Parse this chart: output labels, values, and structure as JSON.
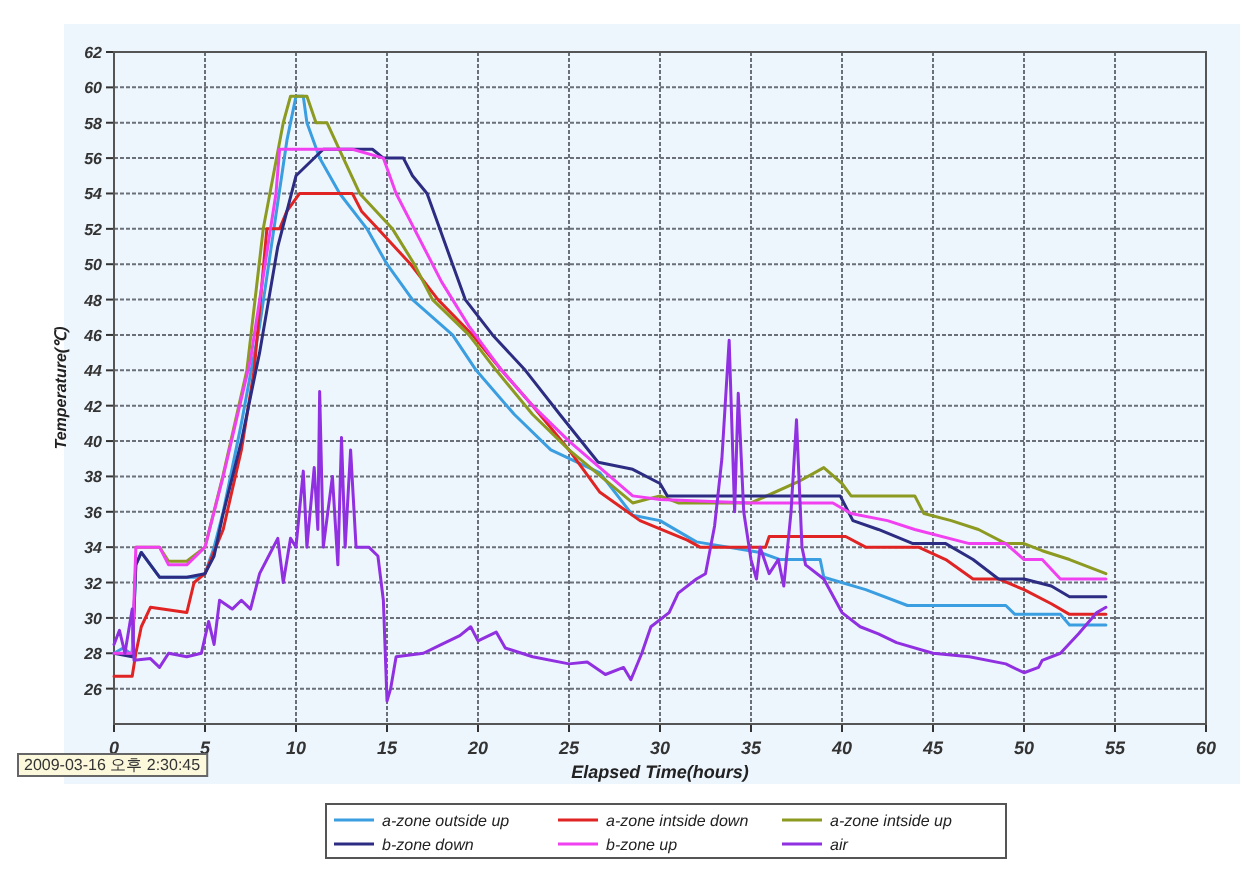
{
  "chart_data": {
    "type": "line",
    "xlabel": "Elapsed Time(hours)",
    "ylabel": "Temperature(℃)",
    "xlim": [
      0,
      60
    ],
    "ylim": [
      24,
      62
    ],
    "xticks": [
      0,
      5,
      10,
      15,
      20,
      25,
      30,
      35,
      40,
      45,
      50,
      55,
      60
    ],
    "yticks": [
      26,
      28,
      30,
      32,
      34,
      36,
      38,
      40,
      42,
      44,
      46,
      48,
      50,
      52,
      54,
      56,
      58,
      60,
      62
    ],
    "grid": true,
    "legend": "bottom",
    "marker": "none",
    "line_style": "solid",
    "annotations": [
      "2009-03-16 오후 2:30:45"
    ],
    "series": [
      {
        "name": "a-zone outside up",
        "color": "#3a9ee0",
        "x": [
          0,
          0.5,
          1,
          1.2,
          1.5,
          2.5,
          3.5,
          4.5,
          5,
          5.5,
          6,
          6.5,
          7,
          7.5,
          8,
          8.5,
          9,
          9.5,
          10,
          10.4,
          10.6,
          11.3,
          12.4,
          13.9,
          15,
          16.4,
          18.6,
          19.9,
          22,
          24,
          26.7,
          28.5,
          30,
          32,
          35.5,
          36.6,
          38.8,
          39,
          41.3,
          43.6,
          49,
          49.5,
          52,
          52.5,
          54.5
        ],
        "values": [
          28,
          28.3,
          27.9,
          33,
          33.7,
          32.3,
          32.3,
          32.3,
          32.5,
          34,
          36,
          38.5,
          41,
          43.8,
          46.5,
          50,
          53.5,
          57,
          59.5,
          59.5,
          58,
          56,
          54,
          52,
          50,
          48,
          46,
          44,
          41.5,
          39.5,
          38.2,
          35.8,
          35.5,
          34.3,
          33.7,
          33.3,
          33.3,
          32.3,
          31.6,
          30.7,
          30.7,
          30.2,
          30.2,
          29.6,
          29.6
        ]
      },
      {
        "name": "a-zone intside down",
        "color": "#e02424",
        "x": [
          0,
          1,
          1.2,
          1.5,
          2,
          4,
          4.4,
          5,
          6,
          7,
          7.7,
          8.4,
          9.1,
          9.5,
          10.2,
          13.1,
          13.6,
          14.5,
          16.3,
          17.8,
          19.7,
          21.3,
          23,
          25,
          26.7,
          28.9,
          31.5,
          32.2,
          35.8,
          36,
          40.2,
          41.3,
          44.2,
          45.7,
          47.2,
          48.6,
          50,
          51.5,
          52.5,
          54.5
        ],
        "values": [
          26.7,
          26.7,
          28,
          29.5,
          30.6,
          30.3,
          32,
          32.5,
          35,
          39.5,
          44,
          52,
          52,
          53,
          54,
          54,
          53,
          52,
          50,
          48,
          46,
          44,
          42,
          39.5,
          37.1,
          35.5,
          34.4,
          34,
          34,
          34.6,
          34.6,
          34,
          34,
          33.3,
          32.2,
          32.2,
          31.6,
          30.8,
          30.2,
          30.2
        ]
      },
      {
        "name": "a-zone intside up",
        "color": "#8c9a22",
        "x": [
          1.2,
          2.5,
          3,
          4,
          5,
          6,
          7.3,
          8.2,
          9.3,
          9.7,
          10.6,
          11.1,
          11.7,
          12.6,
          13.5,
          15.3,
          16.5,
          17.5,
          19.5,
          21,
          23,
          25,
          28.5,
          30,
          31,
          35,
          37.6,
          39,
          40,
          40.5,
          44,
          44.5,
          46,
          47.5,
          49,
          50,
          51,
          52.5,
          54.5
        ],
        "values": [
          34,
          34,
          33.2,
          33.2,
          34,
          38.1,
          44,
          52,
          58,
          59.5,
          59.5,
          58,
          58,
          56,
          54,
          52,
          50,
          48,
          46,
          44,
          41.5,
          39.5,
          36.5,
          36.9,
          36.5,
          36.5,
          37.7,
          38.5,
          37.6,
          36.9,
          36.9,
          35.9,
          35.5,
          35,
          34.2,
          34.2,
          33.8,
          33.3,
          32.5
        ]
      },
      {
        "name": "b-zone down",
        "color": "#2c2c82",
        "x": [
          0,
          1,
          1.2,
          1.5,
          2.5,
          4,
          5,
          5.5,
          6,
          7,
          8,
          9,
          10,
          11.5,
          14.2,
          14.8,
          15.9,
          16.4,
          17.2,
          17.9,
          18.6,
          19.3,
          20.8,
          22.6,
          24.5,
          26.6,
          28.5,
          30,
          30.4,
          39.9,
          40.6,
          42,
          43.9,
          45.7,
          47.2,
          48.6,
          50,
          51.5,
          52.5,
          54.5
        ],
        "values": [
          28,
          27.8,
          33,
          33.7,
          32.3,
          32.3,
          32.5,
          33.5,
          35.9,
          40,
          45,
          51,
          55,
          56.5,
          56.5,
          56,
          56,
          55,
          54,
          52,
          50,
          48,
          46,
          44,
          41.5,
          38.8,
          38.4,
          37.6,
          36.9,
          36.9,
          35.5,
          35,
          34.2,
          34.2,
          33.3,
          32.2,
          32.2,
          31.8,
          31.2,
          31.2
        ]
      },
      {
        "name": "b-zone up",
        "color": "#f040f0",
        "x": [
          0,
          1,
          1.2,
          2.5,
          3,
          4,
          5,
          6,
          7.5,
          8.6,
          8.9,
          9.1,
          13.1,
          14.8,
          15.5,
          16.5,
          18,
          19.5,
          21.3,
          23,
          25,
          28.5,
          30,
          35,
          39.5,
          40.5,
          42.5,
          44,
          47,
          49,
          50,
          51,
          52,
          54.5
        ],
        "values": [
          28,
          28,
          34,
          34,
          33,
          33,
          34,
          38,
          44.6,
          52,
          54,
          56.5,
          56.5,
          56,
          54,
          52,
          49,
          46.5,
          44,
          42,
          40,
          36.9,
          36.7,
          36.5,
          36.5,
          35.9,
          35.5,
          35,
          34.2,
          34.2,
          33.3,
          33.3,
          32.2,
          32.2
        ]
      },
      {
        "name": "air",
        "color": "#9030e0",
        "x": [
          0,
          0.3,
          0.6,
          1,
          1.1,
          2,
          2.5,
          3,
          4,
          4.8,
          5.2,
          5.5,
          5.8,
          6.5,
          7,
          7.5,
          8,
          8.5,
          9,
          9.3,
          9.7,
          10,
          10.4,
          10.6,
          11,
          11.2,
          11.3,
          11.5,
          12,
          12.3,
          12.5,
          12.7,
          13,
          13.3,
          14,
          14.5,
          14.8,
          15,
          15.2,
          15.5,
          17,
          18,
          19,
          19.6,
          20,
          21,
          21.5,
          23,
          25,
          26,
          27,
          28,
          28.4,
          29,
          29.5,
          30.5,
          31,
          32,
          32.5,
          33,
          33.4,
          33.8,
          34.1,
          34.3,
          34.6,
          35,
          35.3,
          35.5,
          36,
          36.5,
          36.8,
          37.2,
          37.5,
          37.8,
          38,
          39,
          40,
          41,
          42,
          43,
          45,
          47,
          49,
          50,
          50.8,
          51,
          52,
          53,
          54,
          54.5
        ],
        "values": [
          28.5,
          29.3,
          28,
          30.5,
          27.6,
          27.7,
          27.2,
          28,
          27.8,
          28,
          29.8,
          28.5,
          31,
          30.5,
          31,
          30.5,
          32.5,
          33.5,
          34.5,
          32,
          34.5,
          34,
          38.3,
          34,
          38.5,
          35,
          42.8,
          34,
          38,
          33,
          40.2,
          34,
          39.5,
          34,
          34,
          33.5,
          31,
          25.3,
          26,
          27.8,
          28,
          28.5,
          29,
          29.5,
          28.7,
          29.2,
          28.3,
          27.8,
          27.4,
          27.5,
          26.8,
          27.2,
          26.5,
          28,
          29.5,
          30.3,
          31.4,
          32.2,
          32.5,
          35.2,
          39,
          45.7,
          36,
          42.7,
          36,
          33.3,
          32.2,
          34,
          32.5,
          33.3,
          31.8,
          36,
          41.2,
          34,
          33,
          32.2,
          30.3,
          29.5,
          29.1,
          28.6,
          28,
          27.8,
          27.4,
          26.9,
          27.2,
          27.6,
          28,
          29.1,
          30.3,
          30.6
        ]
      }
    ]
  }
}
